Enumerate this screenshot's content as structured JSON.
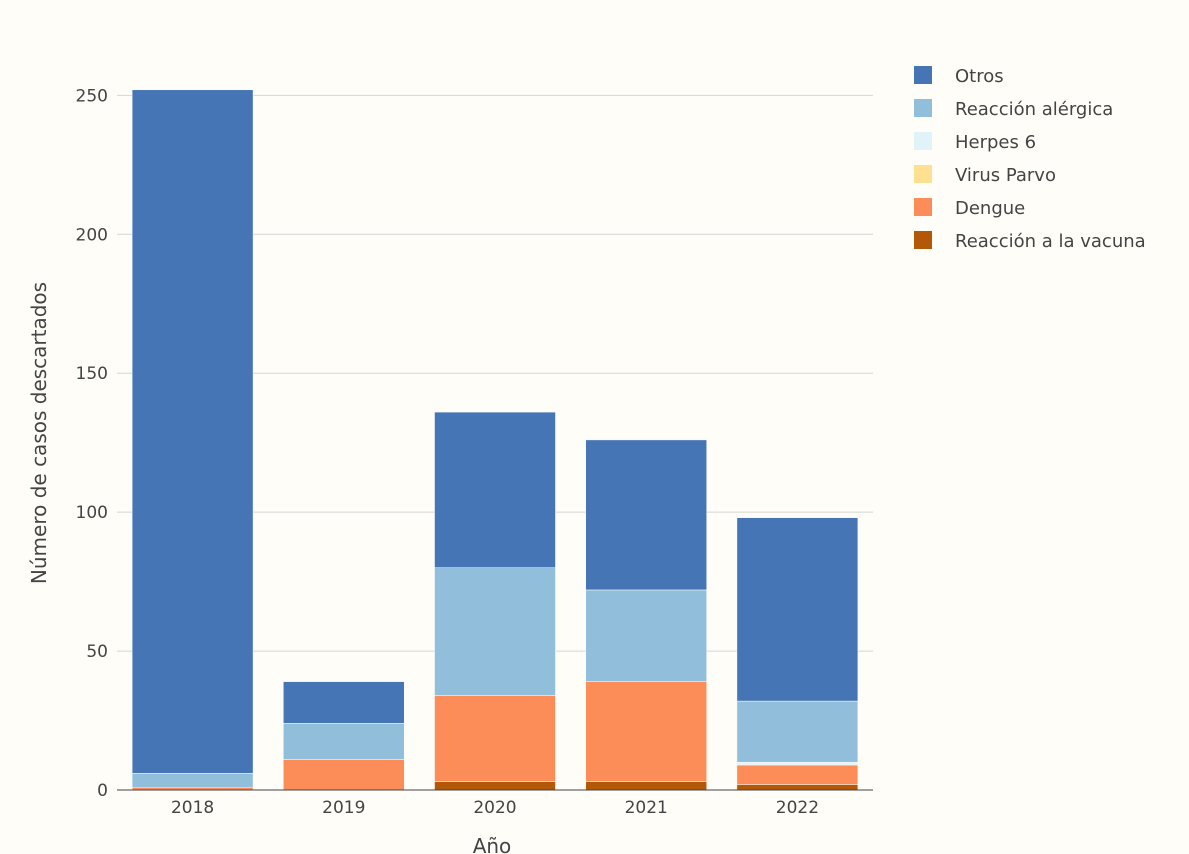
{
  "chart_data": {
    "type": "bar",
    "stacked": true,
    "title": "",
    "xlabel": "Año",
    "ylabel": "Número de casos descartados",
    "categories": [
      "2018",
      "2019",
      "2020",
      "2021",
      "2022"
    ],
    "ylim": [
      0,
      262
    ],
    "yticks": [
      0,
      50,
      100,
      150,
      200,
      250
    ],
    "grid": true,
    "legend_position": "top-right",
    "series": [
      {
        "name": "Reacción a la vacuna",
        "color": "#b35806",
        "values": [
          0,
          0,
          3,
          3,
          2
        ]
      },
      {
        "name": "Dengue",
        "color": "#fc8d59",
        "values": [
          1,
          11,
          31,
          36,
          7
        ]
      },
      {
        "name": "Virus Parvo",
        "color": "#fee090",
        "values": [
          0,
          0,
          0,
          0,
          0
        ]
      },
      {
        "name": "Herpes 6",
        "color": "#e0f3f8",
        "values": [
          0,
          0,
          0,
          0,
          1
        ]
      },
      {
        "name": "Reacción alérgica",
        "color": "#91bfdb",
        "values": [
          5,
          13,
          46,
          33,
          22
        ]
      },
      {
        "name": "Otros",
        "color": "#4575b4",
        "values": [
          246,
          15,
          56,
          54,
          66
        ]
      }
    ],
    "legend_order": [
      "Otros",
      "Reacción alérgica",
      "Herpes 6",
      "Virus Parvo",
      "Dengue",
      "Reacción a la vacuna"
    ]
  }
}
